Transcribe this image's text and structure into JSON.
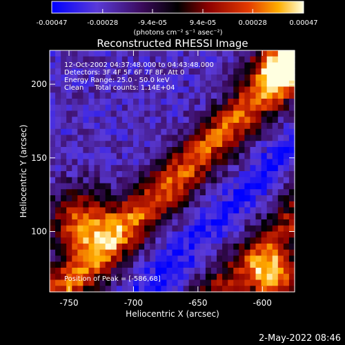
{
  "chart_data": {
    "type": "heatmap",
    "title": "Reconstructed RHESSI Image",
    "xlabel": "Heliocentric X (arcsec)",
    "ylabel": "Heliocentric Y (arcsec)",
    "x_ticks": [
      "-750",
      "-700",
      "-650",
      "-600"
    ],
    "x_tick_values": [
      -750,
      -700,
      -650,
      -600
    ],
    "y_ticks": [
      "100",
      "150",
      "200"
    ],
    "y_tick_values": [
      100,
      150,
      200
    ],
    "xlim": [
      -765,
      -575
    ],
    "ylim": [
      59,
      223
    ],
    "colorbar": {
      "tick_labels": [
        "-0.00047",
        "-0.00028",
        "-9.4e-05",
        "9.4e-05",
        "0.00028",
        "0.00047"
      ],
      "tick_values": [
        -0.00047,
        -0.00028,
        -9.4e-05,
        9.4e-05,
        0.00028,
        0.00047
      ],
      "range": [
        -0.00047,
        0.00047
      ],
      "unit_label": "(photons cm⁻² s⁻¹ asec⁻²)",
      "colors": [
        "#0000ff",
        "#7b4fd0",
        "#4a0b6b",
        "#8b0000",
        "#e23a00",
        "#ff9a00",
        "#ffffd0"
      ]
    },
    "annotations": {
      "time": "12-Oct-2002 04:37:48.000 to 04:43:48.000",
      "detectors": "Detectors: 3F 4F 5F 6F 7F 8F, Att 0",
      "energy": "Energy Range: 25.0 - 50.0 keV",
      "clean": "Clean     Total counts: 1.14E+04",
      "peak": "Position of Peak = [-586,68]"
    },
    "peak": {
      "x": -586,
      "y": 68
    },
    "intensity_grid": {
      "nx": 44,
      "ny": 40,
      "description_units": "relative intensity 0..1 (normalized to colorbar range)"
    }
  },
  "footer": {
    "timestamp": "2-May-2022 08:46"
  }
}
